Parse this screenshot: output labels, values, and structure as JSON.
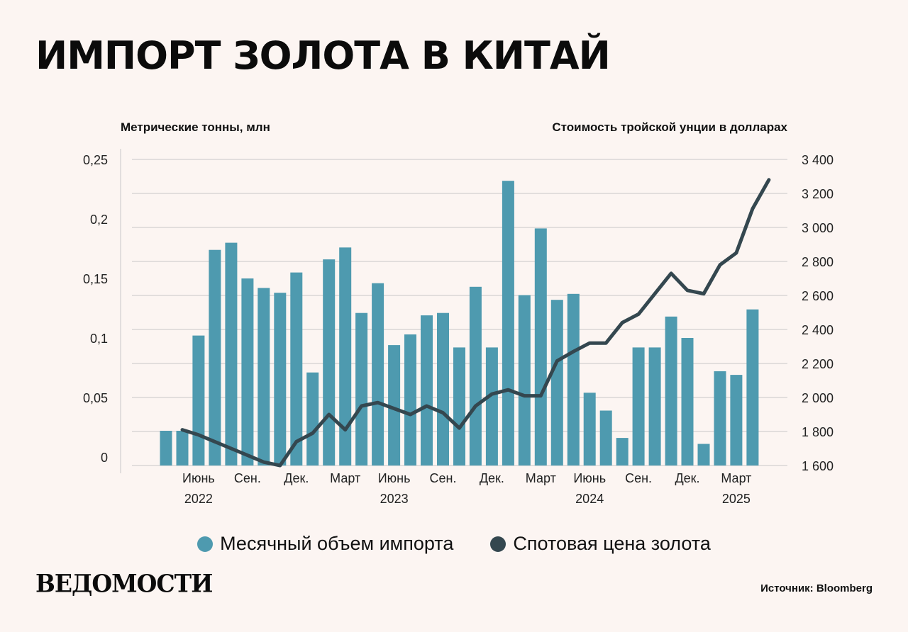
{
  "title": "ИМПОРТ ЗОЛОТА В КИТАЙ",
  "left_axis_title": "Метрические тонны, млн",
  "right_axis_title": "Стоимость тройской унции в долларах",
  "legend": {
    "bars": "Месячный объем импорта",
    "line": "Спотовая цена золота"
  },
  "logo": "ВЕДОМОСТИ",
  "source": "Источник: Bloomberg",
  "colors": {
    "bar": "#4e9aaf",
    "line": "#34474f",
    "background": "#fcf5f2",
    "grid": "#c8c8c8"
  },
  "chart_data": {
    "type": "bar",
    "x": [
      "2022-04",
      "2022-05",
      "2022-06",
      "2022-07",
      "2022-08",
      "2022-09",
      "2022-10",
      "2022-11",
      "2022-12",
      "2023-01",
      "2023-02",
      "2023-03",
      "2023-04",
      "2023-05",
      "2023-06",
      "2023-07",
      "2023-08",
      "2023-09",
      "2023-10",
      "2023-11",
      "2023-12",
      "2024-01",
      "2024-02",
      "2024-03",
      "2024-04",
      "2024-05",
      "2024-06",
      "2024-07",
      "2024-08",
      "2024-09",
      "2024-10",
      "2024-11",
      "2024-12",
      "2025-01",
      "2025-02",
      "2025-03",
      "2025-04"
    ],
    "series": [
      {
        "name": "Месячный объем импорта",
        "type": "bar",
        "axis": "left",
        "values": [
          0.022,
          0.022,
          0.102,
          0.174,
          0.18,
          0.15,
          0.142,
          0.138,
          0.155,
          0.071,
          0.166,
          0.176,
          0.121,
          0.146,
          0.094,
          0.103,
          0.119,
          0.121,
          0.092,
          0.143,
          0.092,
          0.232,
          0.136,
          0.192,
          0.132,
          0.137,
          0.054,
          0.039,
          0.016,
          0.092,
          0.092,
          0.118,
          0.1,
          0.011,
          0.072,
          0.069,
          0.124
        ]
      },
      {
        "name": "Спотовая цена золота",
        "type": "line",
        "axis": "right",
        "start_index": 1,
        "values": [
          1810,
          1780,
          1740,
          1700,
          1660,
          1620,
          1600,
          1740,
          1790,
          1900,
          1810,
          1950,
          1970,
          1935,
          1900,
          1950,
          1910,
          1820,
          1950,
          2020,
          2045,
          2010,
          2010,
          2215,
          2270,
          2320,
          2320,
          2440,
          2490,
          2610,
          2730,
          2630,
          2610,
          2780,
          2850,
          3110,
          3280
        ]
      }
    ],
    "x_tick_labels": [
      {
        "index": 2,
        "label": "Июнь",
        "year": "2022"
      },
      {
        "index": 5,
        "label": "Сен."
      },
      {
        "index": 8,
        "label": "Дек."
      },
      {
        "index": 11,
        "label": "Март"
      },
      {
        "index": 14,
        "label": "Июнь",
        "year": "2023"
      },
      {
        "index": 17,
        "label": "Сен."
      },
      {
        "index": 20,
        "label": "Дек."
      },
      {
        "index": 23,
        "label": "Март"
      },
      {
        "index": 26,
        "label": "Июнь",
        "year": "2024"
      },
      {
        "index": 29,
        "label": "Сен."
      },
      {
        "index": 32,
        "label": "Дек."
      },
      {
        "index": 35,
        "label": "Март",
        "year": "2025"
      }
    ],
    "left_axis": {
      "ylim": [
        0,
        0.25
      ],
      "ticks": [
        0,
        0.05,
        0.1,
        0.15,
        0.2,
        0.25
      ],
      "tick_labels": [
        "0",
        "0,05",
        "0,1",
        "0,15",
        "0,2",
        "0,25"
      ]
    },
    "right_axis": {
      "ylim": [
        1600,
        3400
      ],
      "ticks": [
        1600,
        1800,
        2000,
        2200,
        2400,
        2600,
        2800,
        3000,
        3200,
        3400
      ],
      "tick_labels": [
        "1 600",
        "1 800",
        "2 000",
        "2 200",
        "2 400",
        "2 600",
        "2 800",
        "3 000",
        "3 200",
        "3 400"
      ]
    },
    "grid": true,
    "legend_position": "bottom-center"
  }
}
